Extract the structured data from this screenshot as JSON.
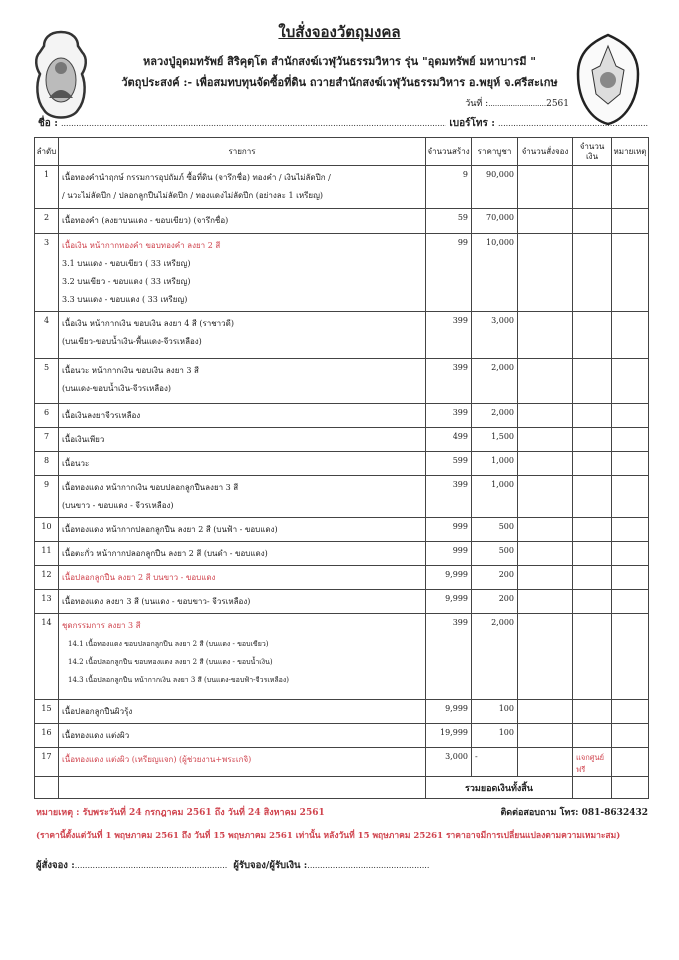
{
  "header": {
    "title": "ใบสั่งจองวัตถุมงคล",
    "subtitle": "หลวงปู่อุดมทรัพย์ สิริคุตฺโต สำนักสงฆ์เวฬุวันธรรมวิหาร รุ่น \"อุดมทรัพย์ มหาบารมี \"",
    "purpose": "วัตถุประสงค์ :-  เพื่อสมทบทุนจัดซื้อที่ดิน ถวายสำนักสงฆ์เวฬุวันธรรมวิหาร อ.พยุห์ จ.ศรีสะเกษ",
    "date_label": "วันที่ :",
    "date_year": "2561",
    "name_label": "ชื่อ :",
    "phone_label": "เบอร์โทร :"
  },
  "table": {
    "columns": [
      "ลำดับ",
      "รายการ",
      "จำนวนสร้าง",
      "ราคาบูชา",
      "จำนวนสั่งจอง",
      "จำนวนเงิน",
      "หมายเหตุ"
    ],
    "rows": [
      {
        "no": "1",
        "lines": [
          "เนื้อทองคำนำฤกษ์ กรรมการอุปถัมภ์ ซื้อที่ดิน  (จารึกชื่อ) ทองคำ / เงินไม่ลัดปีก /",
          "/ นวะไม่ลัดปีก / ปลอกลูกปืนไม่ลัดปีก / ทองแดงไม่ลัดปีก (อย่างละ 1 เหรียญ)"
        ],
        "qty": "9",
        "price": "90,000",
        "remark": ""
      },
      {
        "no": "2",
        "lines": [
          "เนื้อทองคำ (ลงยาบนแดง - ขอบเขียว)  (จารึกชื่อ)"
        ],
        "qty": "59",
        "price": "70,000",
        "remark": ""
      },
      {
        "no": "3",
        "lines": [
          "เนื้อเงิน หน้ากากทองคำ ขอบทองคำ ลงยา 2 สี",
          "3.1 บนแดง - ขอบเขียว     ( 33 เหรียญ)",
          "3.2 บนเขียว - ขอบแดง     ( 33 เหรียญ)",
          "3.3 บนแดง - ขอบแดง       ( 33 เหรียญ)"
        ],
        "qty": "99",
        "price": "10,000",
        "remark": ""
      },
      {
        "no": "4",
        "lines": [
          "เนื้อเงิน หน้ากากเงิน ขอบเงิน ลงยา 4 สี (ราชาวดี)",
          "(บนเขียว-ขอบน้ำเงิน-พื้นแดง-จีวรเหลือง)"
        ],
        "qty": "399",
        "price": "3,000",
        "remark": ""
      },
      {
        "no": "5",
        "lines": [
          "เนื้อนวะ หน้ากากเงิน ขอบเงิน ลงยา 3 สี",
          "(บนแดง-ขอบน้ำเงิน-จีวรเหลือง)"
        ],
        "qty": "399",
        "price": "2,000",
        "remark": ""
      },
      {
        "no": "6",
        "lines": [
          "เนื้อเงินลงยาจีวรเหลือง"
        ],
        "qty": "399",
        "price": "2,000",
        "remark": ""
      },
      {
        "no": "7",
        "lines": [
          "เนื้อเงินเพียว"
        ],
        "qty": "499",
        "price": "1,500",
        "remark": ""
      },
      {
        "no": "8",
        "lines": [
          "เนื้อนวะ"
        ],
        "qty": "599",
        "price": "1,000",
        "remark": ""
      },
      {
        "no": "9",
        "lines": [
          "เนื้อทองแดง หน้ากากเงิน ขอบปลอกลูกปืนลงยา 3 สี",
          "(บนขาว - ขอบแดง - จีวรเหลือง)"
        ],
        "qty": "399",
        "price": "1,000",
        "remark": ""
      },
      {
        "no": "10",
        "lines": [
          "เนื้อทองแดง หน้ากากปลอกลูกปืน ลงยา 2 สี (บนฟ้า - ขอบแดง)"
        ],
        "qty": "999",
        "price": "500",
        "remark": ""
      },
      {
        "no": "11",
        "lines": [
          "เนื้อตะกั่ว หน้ากากปลอกลูกปืน ลงยา 2 สี (บนดำ - ขอบแดง)"
        ],
        "qty": "999",
        "price": "500",
        "remark": ""
      },
      {
        "no": "12",
        "lines": [
          "เนื้อปลอกลูกปืน ลงยา 2 สี  บนขาว - ขอบแดง"
        ],
        "qty": "9,999",
        "price": "200",
        "remark": ""
      },
      {
        "no": "13",
        "lines": [
          "เนื้อทองแดง ลงยา 3 สี (บนแดง - ขอบขาว- จีวรเหลือง)"
        ],
        "qty": "9,999",
        "price": "200",
        "remark": ""
      },
      {
        "no": "14",
        "lines": [
          "ชุดกรรมการ ลงยา 3 สี",
          "14.1 เนื้อทองแดง ขอบปลอกลูกปืน ลงยา 2 สี (บนแดง - ขอบเขียว)",
          "14.2 เนื้อปลอกลูกปืน ขอบทองแดง ลงยา 2 สี (บนแดง - ขอบน้ำเงิน)",
          "14.3 เนื้อปลอกลูกปืน หน้ากากเงิน ลงยา 3 สี (บนแดง-ขอบฟ้า-จีวรเหลือง)"
        ],
        "qty": "399",
        "price": "2,000",
        "remark": ""
      },
      {
        "no": "15",
        "lines": [
          "เนื้อปลอกลูกปืนผิวรุ้ง"
        ],
        "qty": "9,999",
        "price": "100",
        "remark": ""
      },
      {
        "no": "16",
        "lines": [
          "เนื้อทองแดง แต่งผิว"
        ],
        "qty": "19,999",
        "price": "100",
        "remark": ""
      },
      {
        "no": "17",
        "lines": [
          "เนื้อทองแดง แต่งผิว (เหรียญแจก) (ผู้ช่วยงาน+พระเกจิ)"
        ],
        "qty": "3,000",
        "price": "-",
        "remark": "แจกศูนย์ฟรี"
      }
    ],
    "total_label": "รวมยอดเงินทั้งสิ้น"
  },
  "footer": {
    "note": "หมายเหตุ :  รับพระวันที่ 24 กรกฎาคม 2561 ถึง วันที่ 24 สิงหาคม 2561",
    "contact": "ติดต่อสอบถาม โทร: 081-8632432",
    "price_note": "(ราคานี้ตั้งแต่วันที่ 1 พฤษภาคม 2561  ถึง วันที่ 15 พฤษภาคม  2561 เท่านั้น หลังวันที่ 15 พฤษภาคม 25261 ราคาอาจมีการเปลี่ยนแปลงตามความเหมาะสม)",
    "orderer_label": "ผู้สั่งจอง :",
    "receiver_label": "ผู้รับจอง/ผู้รับเงิน :"
  },
  "colors": {
    "accent_red": "#d0454f",
    "text": "#222222",
    "border": "#444444"
  },
  "icons": {
    "left_logo": "monk-medallion-logo",
    "right_logo": "temple-emblem-logo"
  }
}
